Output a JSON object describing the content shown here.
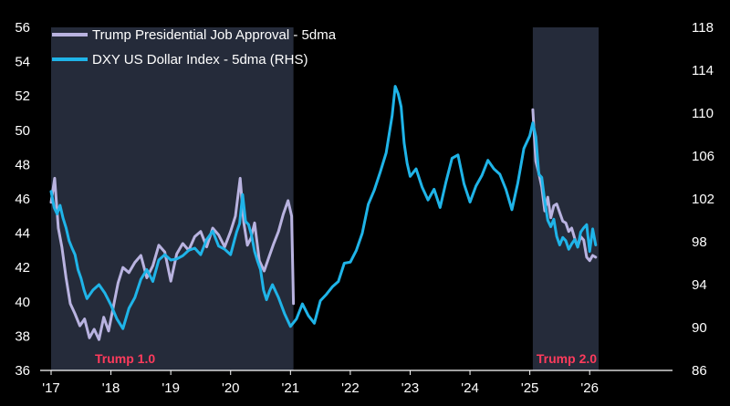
{
  "chart_data": {
    "type": "line",
    "title": "",
    "xlabel": "",
    "ylabel_left": "",
    "ylabel_right": "",
    "x_ticks": [
      "'17",
      "'18",
      "'19",
      "'20",
      "'21",
      "'22",
      "'23",
      "'24",
      "'25",
      "'26"
    ],
    "x_tick_years": [
      2017,
      2018,
      2019,
      2020,
      2021,
      2022,
      2023,
      2024,
      2025,
      2026
    ],
    "xlim": [
      2017.0,
      2026.5
    ],
    "ylim_left": [
      36,
      56
    ],
    "y_ticks_left": [
      "36",
      "38",
      "40",
      "42",
      "44",
      "46",
      "48",
      "50",
      "52",
      "54",
      "56"
    ],
    "ylim_right": [
      86,
      118
    ],
    "y_ticks_right": [
      "86",
      "90",
      "94",
      "98",
      "102",
      "106",
      "110",
      "114",
      "118"
    ],
    "shaded_periods": [
      {
        "label": "Trump 1.0",
        "start": 2017.0,
        "end": 2021.05
      },
      {
        "label": "Trump 2.0",
        "start": 2025.05,
        "end": 2026.15
      }
    ],
    "colors": {
      "approval": "#b9b3e0",
      "dxy": "#1fb4e8",
      "shade": "#252b3a",
      "shade_label": "#ff3b5c",
      "axis": "#ffffff",
      "background": "#000000"
    },
    "legend": [
      "Trump Presidential Job Approval - 5dma",
      "DXY US Dollar Index - 5dma (RHS)"
    ],
    "series": [
      {
        "name": "Trump Presidential Job Approval - 5dma",
        "axis": "left",
        "x": [
          2017.0,
          2017.06,
          2017.12,
          2017.18,
          2017.25,
          2017.32,
          2017.4,
          2017.48,
          2017.56,
          2017.64,
          2017.72,
          2017.8,
          2017.88,
          2017.96,
          2018.04,
          2018.12,
          2018.2,
          2018.3,
          2018.4,
          2018.5,
          2018.6,
          2018.7,
          2018.8,
          2018.9,
          2019.0,
          2019.1,
          2019.2,
          2019.3,
          2019.4,
          2019.5,
          2019.6,
          2019.7,
          2019.8,
          2019.9,
          2020.0,
          2020.08,
          2020.16,
          2020.22,
          2020.28,
          2020.34,
          2020.4,
          2020.48,
          2020.56,
          2020.64,
          2020.72,
          2020.8,
          2020.88,
          2020.96,
          2021.02,
          2021.05,
          2025.05,
          2025.1,
          2025.15,
          2025.2,
          2025.25,
          2025.3,
          2025.35,
          2025.4,
          2025.45,
          2025.5,
          2025.55,
          2025.6,
          2025.65,
          2025.7,
          2025.75,
          2025.8,
          2025.85,
          2025.9,
          2025.95,
          2026.0,
          2026.05,
          2026.1
        ],
        "values": [
          45.8,
          47.2,
          44.3,
          43.2,
          41.4,
          39.9,
          39.3,
          38.6,
          39.0,
          37.9,
          38.4,
          37.8,
          39.1,
          38.3,
          39.7,
          41.1,
          42.0,
          41.7,
          42.3,
          42.7,
          41.4,
          42.1,
          43.3,
          42.9,
          41.2,
          42.8,
          43.4,
          43.0,
          43.8,
          44.1,
          43.2,
          44.3,
          43.9,
          43.2,
          44.1,
          45.0,
          47.2,
          44.6,
          43.3,
          43.7,
          44.6,
          42.4,
          41.8,
          42.6,
          43.4,
          44.1,
          45.1,
          45.9,
          45.0,
          39.9,
          51.2,
          48.2,
          47.5,
          46.7,
          45.3,
          46.1,
          44.9,
          45.6,
          45.7,
          45.2,
          44.7,
          44.6,
          44.1,
          44.3,
          43.7,
          43.2,
          43.8,
          43.6,
          42.6,
          42.4,
          42.7,
          42.6
        ]
      },
      {
        "name": "DXY US Dollar Index - 5dma (RHS)",
        "axis": "right",
        "x": [
          2017.0,
          2017.05,
          2017.1,
          2017.15,
          2017.2,
          2017.25,
          2017.3,
          2017.35,
          2017.4,
          2017.45,
          2017.5,
          2017.55,
          2017.6,
          2017.7,
          2017.8,
          2017.9,
          2018.0,
          2018.1,
          2018.2,
          2018.3,
          2018.4,
          2018.5,
          2018.6,
          2018.7,
          2018.8,
          2018.9,
          2019.0,
          2019.1,
          2019.2,
          2019.3,
          2019.4,
          2019.5,
          2019.6,
          2019.7,
          2019.8,
          2019.9,
          2020.0,
          2020.1,
          2020.15,
          2020.2,
          2020.25,
          2020.3,
          2020.35,
          2020.4,
          2020.45,
          2020.5,
          2020.55,
          2020.6,
          2020.65,
          2020.7,
          2020.8,
          2020.9,
          2021.0,
          2021.1,
          2021.2,
          2021.3,
          2021.4,
          2021.5,
          2021.6,
          2021.7,
          2021.8,
          2021.9,
          2022.0,
          2022.1,
          2022.2,
          2022.3,
          2022.4,
          2022.5,
          2022.6,
          2022.7,
          2022.75,
          2022.8,
          2022.85,
          2022.9,
          2022.95,
          2023.0,
          2023.1,
          2023.2,
          2023.3,
          2023.4,
          2023.5,
          2023.6,
          2023.7,
          2023.8,
          2023.9,
          2024.0,
          2024.1,
          2024.2,
          2024.3,
          2024.4,
          2024.5,
          2024.6,
          2024.7,
          2024.8,
          2024.9,
          2025.0,
          2025.05,
          2025.1,
          2025.15,
          2025.2,
          2025.25,
          2025.3,
          2025.35,
          2025.4,
          2025.45,
          2025.5,
          2025.55,
          2025.6,
          2025.65,
          2025.7,
          2025.75,
          2025.8,
          2025.85,
          2025.9,
          2025.95,
          2026.0,
          2026.05,
          2026.1
        ],
        "values": [
          102.7,
          101.2,
          100.6,
          101.4,
          100.2,
          99.3,
          98.1,
          97.4,
          96.8,
          95.4,
          94.6,
          93.5,
          92.7,
          93.5,
          94.0,
          93.2,
          92.1,
          90.8,
          89.9,
          91.8,
          92.8,
          94.5,
          95.4,
          94.3,
          96.3,
          96.8,
          96.3,
          96.4,
          96.7,
          97.2,
          97.4,
          96.8,
          98.2,
          99.0,
          97.6,
          97.3,
          96.8,
          98.9,
          99.7,
          102.4,
          99.9,
          99.6,
          98.6,
          97.1,
          96.2,
          95.4,
          93.5,
          92.6,
          93.4,
          94.0,
          92.8,
          91.3,
          90.1,
          90.8,
          92.2,
          91.1,
          90.4,
          92.5,
          93.1,
          93.8,
          94.3,
          96.0,
          96.1,
          97.2,
          98.8,
          101.5,
          102.8,
          104.5,
          106.3,
          109.8,
          112.5,
          111.8,
          110.6,
          107.2,
          105.3,
          104.1,
          104.8,
          103.1,
          101.9,
          102.9,
          101.2,
          103.6,
          105.8,
          106.1,
          103.4,
          101.7,
          103.2,
          104.2,
          105.6,
          104.8,
          104.3,
          102.9,
          101.0,
          103.5,
          106.7,
          107.9,
          109.1,
          107.8,
          104.3,
          104.0,
          101.8,
          100.0,
          99.4,
          100.1,
          98.5,
          97.7,
          98.4,
          98.1,
          97.3,
          97.8,
          98.2,
          97.5,
          98.9,
          99.3,
          99.6,
          97.1,
          99.2,
          97.7
        ]
      }
    ]
  }
}
